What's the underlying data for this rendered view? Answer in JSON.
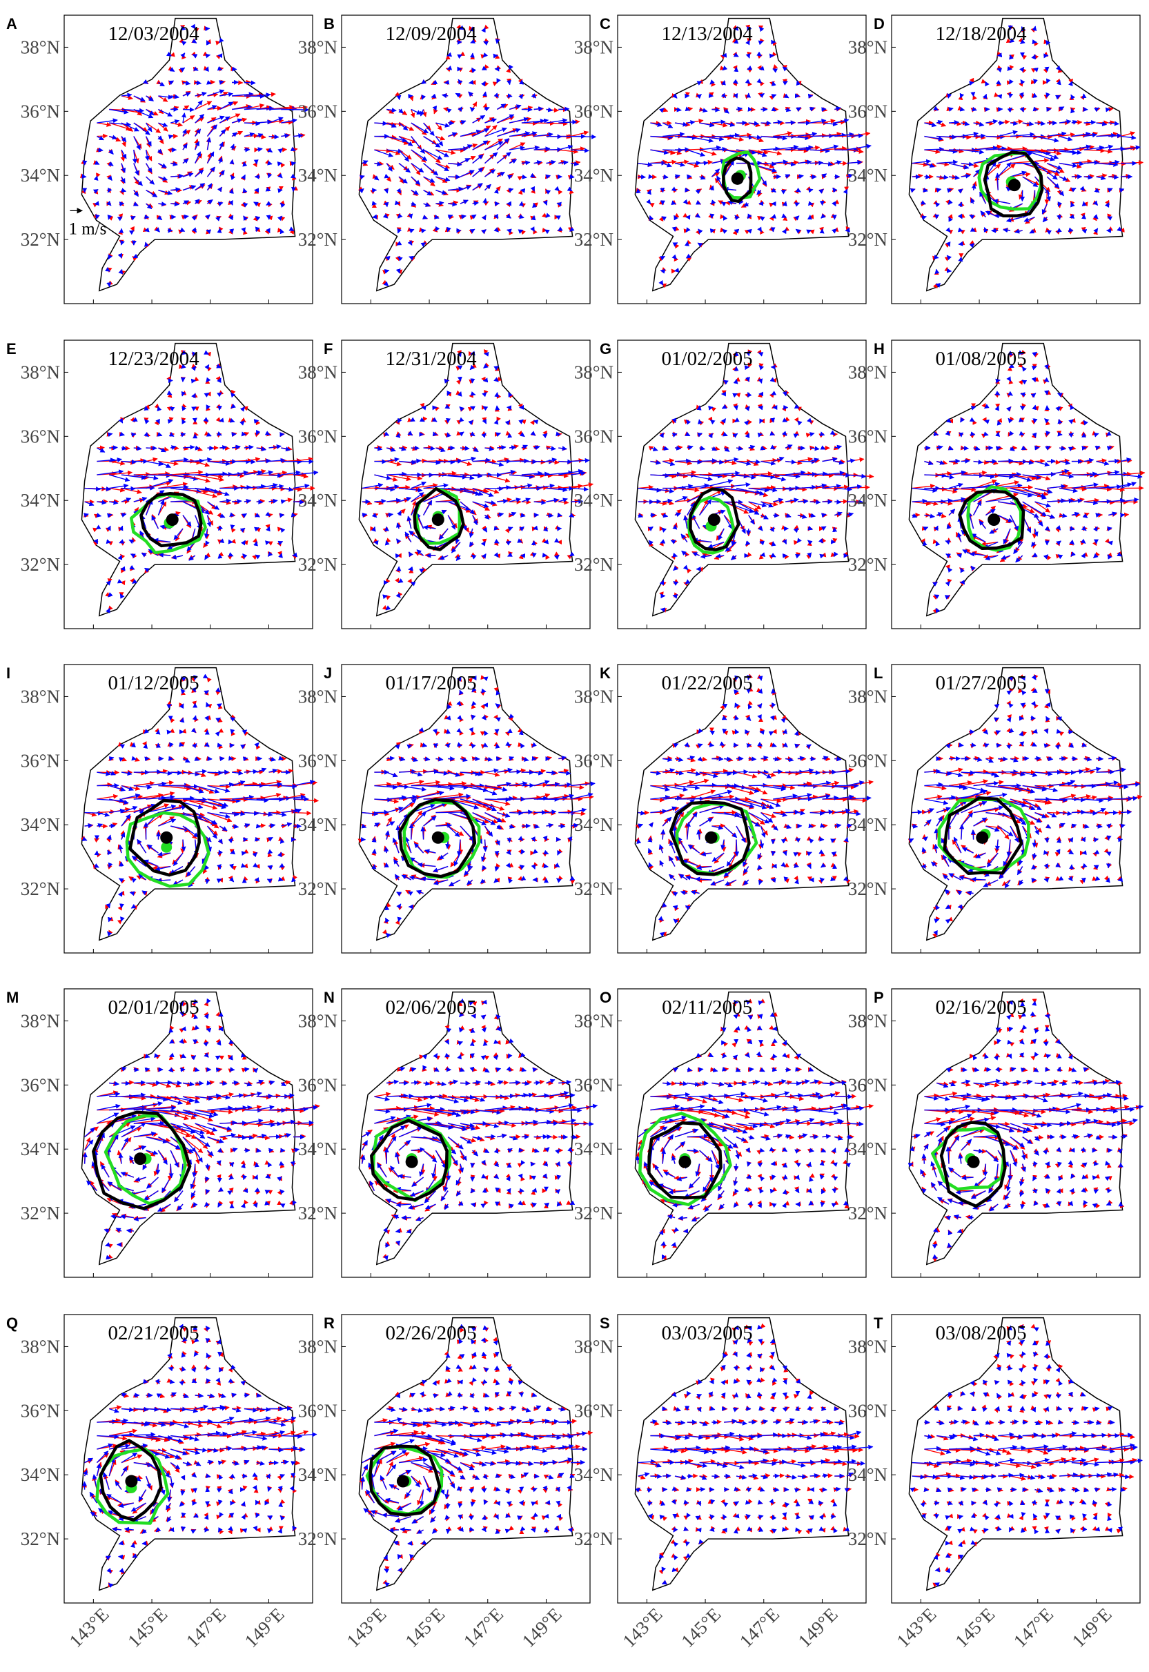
{
  "chart_data": {
    "type": "vector-field",
    "description_of_layers": [
      "current vectors (red)",
      "current vectors (blue)",
      "eddy boundary (black)",
      "eddy boundary (green)",
      "eddy center (black)",
      "eddy center (green)"
    ],
    "colors": {
      "red_vectors": "#ff0000",
      "blue_vectors": "#0000ff",
      "contour_black": "#000000",
      "contour_green": "#22dd22",
      "coast": "#000000"
    },
    "axes": {
      "xlim": [
        142.0,
        150.5
      ],
      "ylim": [
        30.0,
        39.0
      ],
      "y_ticks": [
        "32°N",
        "34°N",
        "36°N",
        "38°N"
      ],
      "y_tick_values": [
        32,
        34,
        36,
        38
      ],
      "x_ticks": [
        "143°E",
        "145°E",
        "147°E",
        "149°E"
      ],
      "x_tick_values": [
        143,
        145,
        147,
        149
      ],
      "grid": false
    },
    "scale_arrow": {
      "label": "1 m/s",
      "panel": "A",
      "speed": 1.0
    },
    "domain_outline": [
      [
        145.8,
        38.9
      ],
      [
        147.2,
        38.9
      ],
      [
        147.5,
        37.6
      ],
      [
        148.2,
        36.9
      ],
      [
        149.0,
        36.4
      ],
      [
        149.8,
        36.0
      ],
      [
        149.9,
        34.5
      ],
      [
        149.8,
        32.8
      ],
      [
        149.9,
        32.1
      ],
      [
        147.3,
        32.0
      ],
      [
        145.1,
        32.0
      ],
      [
        144.6,
        31.6
      ],
      [
        143.8,
        30.6
      ],
      [
        143.2,
        30.4
      ],
      [
        143.3,
        31.1
      ],
      [
        143.9,
        32.1
      ],
      [
        143.1,
        32.6
      ],
      [
        142.6,
        33.4
      ],
      [
        142.7,
        34.6
      ],
      [
        142.9,
        35.7
      ],
      [
        143.9,
        36.5
      ],
      [
        145.0,
        37.0
      ],
      [
        145.6,
        37.6
      ]
    ],
    "panels": [
      {
        "label": "A",
        "date": "12/03/2004",
        "eddy": false
      },
      {
        "label": "B",
        "date": "12/09/2004",
        "eddy": false
      },
      {
        "label": "C",
        "date": "12/13/2004",
        "eddy": true,
        "center_black": [
          146.1,
          33.9
        ],
        "center_green": [
          146.2,
          34.0
        ],
        "radius_black": [
          0.5,
          0.7
        ],
        "radius_green": [
          0.65,
          0.75
        ]
      },
      {
        "label": "D",
        "date": "12/18/2004",
        "eddy": true,
        "center_black": [
          146.2,
          33.7
        ],
        "center_green": [
          146.1,
          33.8
        ],
        "radius_black": [
          1.0,
          1.0
        ],
        "radius_green": [
          1.1,
          0.9
        ]
      },
      {
        "label": "E",
        "date": "12/23/2004",
        "eddy": true,
        "center_black": [
          145.7,
          33.4
        ],
        "center_green": [
          145.6,
          33.3
        ],
        "radius_black": [
          1.0,
          0.85
        ],
        "radius_green": [
          1.2,
          0.9
        ]
      },
      {
        "label": "F",
        "date": "12/31/2004",
        "eddy": true,
        "center_black": [
          145.3,
          33.4
        ],
        "center_green": [
          145.3,
          33.5
        ],
        "radius_black": [
          0.85,
          0.9
        ],
        "radius_green": [
          0.8,
          0.85
        ]
      },
      {
        "label": "G",
        "date": "01/02/2005",
        "eddy": true,
        "center_black": [
          145.3,
          33.4
        ],
        "center_green": [
          145.2,
          33.2
        ],
        "radius_black": [
          0.8,
          0.95
        ],
        "radius_green": [
          0.75,
          0.85
        ]
      },
      {
        "label": "H",
        "date": "01/08/2005",
        "eddy": true,
        "center_black": [
          145.5,
          33.4
        ],
        "center_green": [
          145.5,
          33.4
        ],
        "radius_black": [
          1.1,
          0.95
        ],
        "radius_green": [
          1.0,
          0.95
        ]
      },
      {
        "label": "I",
        "date": "01/12/2005",
        "eddy": true,
        "center_black": [
          145.5,
          33.6
        ],
        "center_green": [
          145.5,
          33.3
        ],
        "radius_black": [
          1.2,
          1.1
        ],
        "radius_green": [
          1.4,
          1.2
        ]
      },
      {
        "label": "J",
        "date": "01/17/2005",
        "eddy": true,
        "center_black": [
          145.3,
          33.6
        ],
        "center_green": [
          145.5,
          33.6
        ],
        "radius_black": [
          1.3,
          1.2
        ],
        "radius_green": [
          1.3,
          1.2
        ]
      },
      {
        "label": "K",
        "date": "01/22/2005",
        "eddy": true,
        "center_black": [
          145.2,
          33.6
        ],
        "center_green": [
          145.3,
          33.6
        ],
        "radius_black": [
          1.3,
          1.2
        ],
        "radius_green": [
          1.4,
          1.1
        ]
      },
      {
        "label": "L",
        "date": "01/27/2005",
        "eddy": true,
        "center_black": [
          145.1,
          33.6
        ],
        "center_green": [
          145.2,
          33.7
        ],
        "radius_black": [
          1.3,
          1.2
        ],
        "radius_green": [
          1.6,
          1.1
        ]
      },
      {
        "label": "M",
        "date": "02/01/2005",
        "eddy": true,
        "center_black": [
          144.6,
          33.7
        ],
        "center_green": [
          144.8,
          33.7
        ],
        "radius_black": [
          1.6,
          1.5
        ],
        "radius_green": [
          1.3,
          1.3
        ]
      },
      {
        "label": "N",
        "date": "02/06/2005",
        "eddy": true,
        "center_black": [
          144.4,
          33.6
        ],
        "center_green": [
          144.4,
          33.7
        ],
        "radius_black": [
          1.3,
          1.2
        ],
        "radius_green": [
          1.4,
          1.2
        ]
      },
      {
        "label": "O",
        "date": "02/11/2005",
        "eddy": true,
        "center_black": [
          144.3,
          33.6
        ],
        "center_green": [
          144.3,
          33.7
        ],
        "radius_black": [
          1.3,
          1.2
        ],
        "radius_green": [
          1.5,
          1.3
        ]
      },
      {
        "label": "P",
        "date": "02/16/2005",
        "eddy": true,
        "center_black": [
          144.8,
          33.6
        ],
        "center_green": [
          144.7,
          33.7
        ],
        "radius_black": [
          1.1,
          1.3
        ],
        "radius_green": [
          1.2,
          1.0
        ]
      },
      {
        "label": "Q",
        "date": "02/21/2005",
        "eddy": true,
        "center_black": [
          144.3,
          33.8
        ],
        "center_green": [
          144.3,
          33.6
        ],
        "radius_black": [
          1.0,
          1.2
        ],
        "radius_green": [
          1.2,
          1.2
        ]
      },
      {
        "label": "R",
        "date": "02/26/2005",
        "eddy": true,
        "center_black": [
          144.1,
          33.8
        ],
        "center_green": [
          144.2,
          33.8
        ],
        "radius_black": [
          1.2,
          1.1
        ],
        "radius_green": [
          1.3,
          1.1
        ]
      },
      {
        "label": "S",
        "date": "03/03/2005",
        "eddy": false
      },
      {
        "label": "T",
        "date": "03/08/2005",
        "eddy": false
      }
    ]
  }
}
